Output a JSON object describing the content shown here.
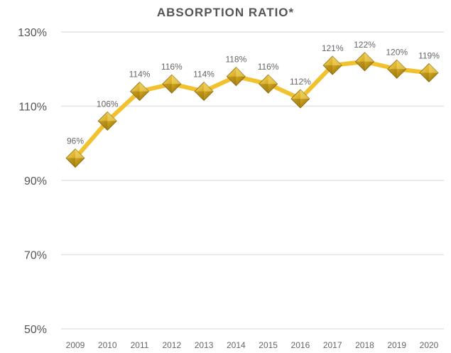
{
  "chart_data": {
    "type": "line",
    "title": "ABSORPTION RATIO*",
    "xlabel": "",
    "ylabel": "",
    "categories": [
      "2009",
      "2010",
      "2011",
      "2012",
      "2013",
      "2014",
      "2015",
      "2016",
      "2017",
      "2018",
      "2019",
      "2020"
    ],
    "series": [
      {
        "values": [
          96,
          106,
          114,
          116,
          114,
          118,
          116,
          112,
          121,
          122,
          120,
          119
        ],
        "labels": [
          "96%",
          "106%",
          "114%",
          "116%",
          "114%",
          "118%",
          "116%",
          "112%",
          "121%",
          "122%",
          "120%",
          "119%"
        ],
        "color": "#f2c12e",
        "marker": "diamond",
        "marker_color": "#c9a227"
      }
    ],
    "y_ticks": [
      50,
      70,
      90,
      110,
      130
    ],
    "y_tick_labels": [
      "50%",
      "70%",
      "90%",
      "110%",
      "130%"
    ],
    "ylim": [
      50,
      130
    ],
    "grid": true,
    "legend": "none"
  }
}
